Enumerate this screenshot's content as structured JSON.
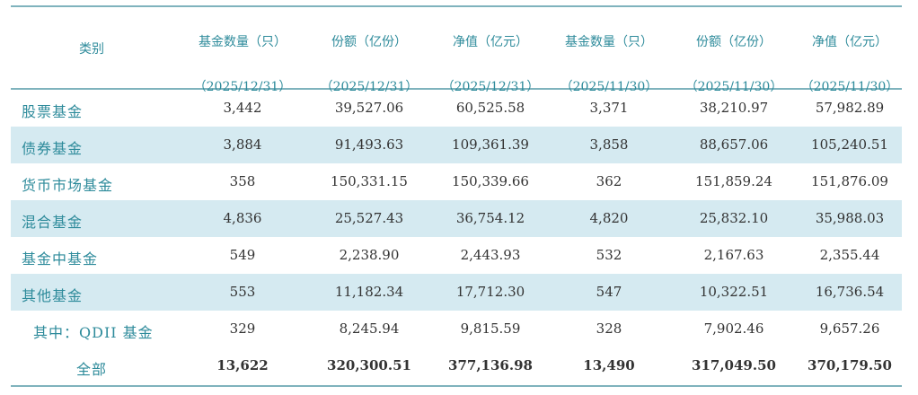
{
  "header": {
    "category": "类别",
    "columns": [
      {
        "title": "基金数量（只）",
        "date": "（2025/12/31）"
      },
      {
        "title": "份额（亿份）",
        "date": "（2025/12/31）"
      },
      {
        "title": "净值（亿元）",
        "date": "（2025/12/31）"
      },
      {
        "title": "基金数量（只）",
        "date": "（2025/11/30）"
      },
      {
        "title": "份额（亿份）",
        "date": "（2025/11/30）"
      },
      {
        "title": "净值（亿元）",
        "date": "（2025/11/30）"
      }
    ]
  },
  "rows": [
    {
      "label": "股票基金",
      "values": [
        "3,442",
        "39,527.06",
        "60,525.58",
        "3,371",
        "38,210.97",
        "57,982.89"
      ]
    },
    {
      "label": "债券基金",
      "values": [
        "3,884",
        "91,493.63",
        "109,361.39",
        "3,858",
        "88,657.06",
        "105,240.51"
      ]
    },
    {
      "label": "货币市场基金",
      "values": [
        "358",
        "150,331.15",
        "150,339.66",
        "362",
        "151,859.24",
        "151,876.09"
      ]
    },
    {
      "label": "混合基金",
      "values": [
        "4,836",
        "25,527.43",
        "36,754.12",
        "4,820",
        "25,832.10",
        "35,988.03"
      ]
    },
    {
      "label": "基金中基金",
      "values": [
        "549",
        "2,238.90",
        "2,443.93",
        "532",
        "2,167.63",
        "2,355.44"
      ]
    },
    {
      "label": "其他基金",
      "values": [
        "553",
        "11,182.34",
        "17,712.30",
        "547",
        "10,322.51",
        "16,736.54"
      ]
    },
    {
      "label": "其中：QDII 基金",
      "values": [
        "329",
        "8,245.94",
        "9,815.59",
        "328",
        "7,902.46",
        "9,657.26"
      ]
    },
    {
      "label": "全部",
      "values": [
        "13,622",
        "320,300.51",
        "377,136.98",
        "13,490",
        "317,049.50",
        "370,179.50"
      ]
    }
  ],
  "colors": {
    "header_text": "#2e8b9b",
    "stripe": "#d5eaf1",
    "rule": "#7fb3bd"
  }
}
